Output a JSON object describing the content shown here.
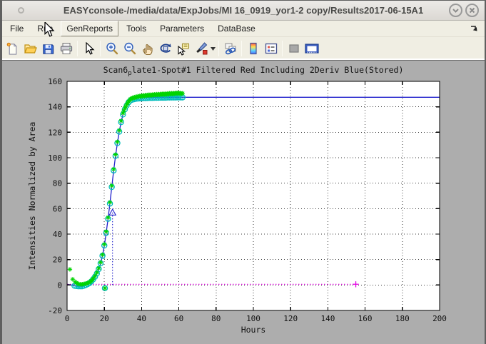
{
  "window": {
    "title": "EASYconsole-/media/data/ExpJobs/MI 16_0919_yor1-2 copy/Results2017-06-15A1",
    "controls": {
      "minimize_icon": "chevron-down",
      "close_icon": "cross"
    }
  },
  "menu": {
    "items": [
      {
        "label": "File"
      },
      {
        "label": "Run"
      },
      {
        "label": "GenReports",
        "state": "hovered"
      },
      {
        "label": "Tools"
      },
      {
        "label": "Parameters"
      },
      {
        "label": "DataBase"
      }
    ],
    "overflow_icon": "jump-arrow-southeast"
  },
  "toolbar": {
    "icons": [
      "new-document",
      "open-folder",
      "save",
      "print",
      "edit-plot-pointer",
      "zoom-in",
      "zoom-out",
      "pan-hand",
      "rotate-3d",
      "data-cursor",
      "brush-data",
      "brush-dropdown",
      "link-plots",
      "insert-colorbar",
      "insert-legend",
      "hide-plot-tools",
      "show-plot-tools-dock"
    ]
  },
  "chart_data": {
    "type": "line",
    "title": {
      "pre": "Scan6",
      "sub": "p",
      "post": "late1-Spot#1 Filtered Red Including 2Deriv Blue(Stored)"
    },
    "xlabel": "Hours",
    "ylabel": "Intensities Normalized by Area",
    "xlim": [
      0,
      200
    ],
    "ylim": [
      -20,
      160
    ],
    "xticks": [
      0,
      20,
      40,
      60,
      80,
      100,
      120,
      140,
      160,
      180,
      200
    ],
    "yticks": [
      -20,
      0,
      20,
      40,
      60,
      80,
      100,
      120,
      140,
      160
    ],
    "grid": true,
    "plot_bg": "#ffffff",
    "figure_bg": "#adadad",
    "series": [
      {
        "name": "fit-curve",
        "kind": "line",
        "color": "#2121cc",
        "width": 1.3,
        "points": [
          [
            0,
            0.5
          ],
          [
            2,
            0
          ],
          [
            4,
            -0.6
          ],
          [
            5,
            -0.8
          ],
          [
            6,
            -1
          ],
          [
            7,
            -1
          ],
          [
            8,
            -1
          ],
          [
            9,
            -0.6
          ],
          [
            10,
            0
          ],
          [
            11,
            0.7
          ],
          [
            12,
            1.5
          ],
          [
            13,
            2.8
          ],
          [
            14,
            4.5
          ],
          [
            15,
            6.5
          ],
          [
            16,
            9
          ],
          [
            17,
            12.5
          ],
          [
            18,
            17
          ],
          [
            19,
            23
          ],
          [
            20,
            31
          ],
          [
            21,
            41
          ],
          [
            22,
            52
          ],
          [
            23,
            64
          ],
          [
            24,
            77
          ],
          [
            25,
            90
          ],
          [
            26,
            101.5
          ],
          [
            27,
            111.5
          ],
          [
            28,
            120.5
          ],
          [
            29,
            128
          ],
          [
            30,
            134
          ],
          [
            31,
            138
          ],
          [
            32,
            141
          ],
          [
            33,
            143.5
          ],
          [
            34,
            145
          ],
          [
            35,
            145.8
          ],
          [
            36,
            146.3
          ],
          [
            37,
            146.7
          ],
          [
            38,
            147
          ],
          [
            39,
            147.2
          ],
          [
            40,
            147.3
          ],
          [
            42,
            147.4
          ],
          [
            45,
            147.5
          ],
          [
            50,
            147.5
          ],
          [
            60,
            147.5
          ],
          [
            100,
            147.5
          ],
          [
            200,
            147.5
          ]
        ]
      },
      {
        "name": "deriv-baseline",
        "kind": "dotted-line",
        "color": "#e100e1",
        "width": 1.2,
        "points": [
          [
            0,
            0.6
          ],
          [
            155,
            0.6
          ]
        ]
      },
      {
        "name": "inflection-line",
        "kind": "dotted-vline",
        "color": "#2121cc",
        "width": 1.1,
        "x": 24.4,
        "y0": 0,
        "y1": 57
      },
      {
        "name": "inflection-marker",
        "kind": "scatter",
        "marker": "triangle-open",
        "color": "#2121cc",
        "size": 4.5,
        "points": [
          [
            24.4,
            57
          ]
        ]
      },
      {
        "name": "stored-circles",
        "kind": "scatter",
        "marker": "circle-open",
        "color": "#00bcbc",
        "size": 3.6,
        "points": [
          [
            4,
            -0.6
          ],
          [
            5,
            -0.8
          ],
          [
            6,
            -1
          ],
          [
            7,
            -1
          ],
          [
            8,
            -1
          ],
          [
            9,
            -0.6
          ],
          [
            10,
            0
          ],
          [
            11,
            0.7
          ],
          [
            12,
            1.5
          ],
          [
            13,
            2.8
          ],
          [
            14,
            4.5
          ],
          [
            15,
            6.5
          ],
          [
            16,
            9
          ],
          [
            17,
            12.5
          ],
          [
            18,
            17
          ],
          [
            19,
            23
          ],
          [
            20,
            31
          ],
          [
            20.3,
            -2.5
          ],
          [
            21,
            41
          ],
          [
            22,
            52
          ],
          [
            23,
            64
          ],
          [
            24,
            77
          ],
          [
            25,
            90
          ],
          [
            26,
            101.5
          ],
          [
            27,
            111.5
          ],
          [
            28,
            120.5
          ],
          [
            29,
            128
          ],
          [
            30,
            134
          ],
          [
            31,
            138
          ],
          [
            32,
            141
          ],
          [
            33,
            143.5
          ],
          [
            34,
            145
          ],
          [
            35,
            145.6
          ],
          [
            36,
            146
          ],
          [
            37,
            146.3
          ],
          [
            38,
            146.5
          ],
          [
            39,
            146.6
          ],
          [
            40,
            146.7
          ],
          [
            41,
            146.8
          ],
          [
            42,
            146.8
          ],
          [
            43,
            146.9
          ],
          [
            44,
            147
          ],
          [
            45,
            147
          ],
          [
            46,
            147
          ],
          [
            47,
            147.1
          ],
          [
            48,
            147.1
          ],
          [
            49,
            147.1
          ],
          [
            50,
            147.2
          ],
          [
            51,
            147.2
          ],
          [
            52,
            147.2
          ],
          [
            53,
            147.2
          ],
          [
            54,
            147.3
          ],
          [
            55,
            147.3
          ],
          [
            56,
            147.3
          ],
          [
            57,
            147.3
          ],
          [
            58,
            147.3
          ],
          [
            59,
            147.4
          ],
          [
            60,
            147.4
          ],
          [
            61,
            147.4
          ],
          [
            62,
            147.4
          ]
        ]
      },
      {
        "name": "filtered-asterisks",
        "kind": "scatter",
        "marker": "asterisk",
        "color": "#00d400",
        "size": 3.2,
        "points": [
          [
            1.5,
            12.3
          ],
          [
            3,
            4.5
          ],
          [
            4.3,
            2.5
          ],
          [
            5,
            1.8
          ],
          [
            5.6,
            1.2
          ],
          [
            6.2,
            0.8
          ],
          [
            7,
            0.6
          ],
          [
            7.6,
            0.5
          ],
          [
            8.2,
            0.6
          ],
          [
            9,
            0.8
          ],
          [
            9.6,
            1
          ],
          [
            10.2,
            1.2
          ],
          [
            11,
            1.6
          ],
          [
            11.6,
            1.9
          ],
          [
            12.2,
            2.3
          ],
          [
            13,
            3.3
          ],
          [
            13.6,
            4.1
          ],
          [
            14,
            5.2
          ],
          [
            15,
            7.2
          ],
          [
            16,
            9.8
          ],
          [
            17,
            13.2
          ],
          [
            18,
            17.8
          ],
          [
            19,
            23.8
          ],
          [
            20,
            32
          ],
          [
            20.3,
            -2.5
          ],
          [
            21,
            42
          ],
          [
            22,
            53
          ],
          [
            23,
            65
          ],
          [
            24,
            78
          ],
          [
            25,
            91
          ],
          [
            26,
            102.5
          ],
          [
            27,
            112.5
          ],
          [
            28,
            121.5
          ],
          [
            29,
            129
          ],
          [
            30,
            135
          ],
          [
            30.5,
            136.8
          ],
          [
            31,
            139
          ],
          [
            31.5,
            140.2
          ],
          [
            32,
            142
          ],
          [
            32.5,
            143
          ],
          [
            33,
            144.3
          ],
          [
            33.5,
            145
          ],
          [
            34,
            146
          ],
          [
            34.5,
            146.4
          ],
          [
            35,
            147
          ],
          [
            35.5,
            146.8
          ],
          [
            36,
            147.5
          ],
          [
            36.5,
            147.2
          ],
          [
            37,
            148
          ],
          [
            37.5,
            147.6
          ],
          [
            38,
            148.3
          ],
          [
            38.5,
            147.9
          ],
          [
            39,
            148.5
          ],
          [
            39.5,
            148.1
          ],
          [
            40,
            148.8
          ],
          [
            40.5,
            148.3
          ],
          [
            41,
            149
          ],
          [
            41.5,
            148.4
          ],
          [
            42,
            149.2
          ],
          [
            42.5,
            148.6
          ],
          [
            43,
            149.3
          ],
          [
            43.5,
            148.8
          ],
          [
            44,
            149.5
          ],
          [
            44.5,
            148.9
          ],
          [
            45,
            149.6
          ],
          [
            45.5,
            149
          ],
          [
            46,
            149.7
          ],
          [
            46.5,
            149.1
          ],
          [
            47,
            149.8
          ],
          [
            47.5,
            149.2
          ],
          [
            48,
            149.9
          ],
          [
            48.5,
            149.3
          ],
          [
            49,
            150
          ],
          [
            49.5,
            149.4
          ],
          [
            50,
            150.1
          ],
          [
            50.5,
            149.5
          ],
          [
            51,
            150.2
          ],
          [
            51.5,
            149.6
          ],
          [
            52,
            150.3
          ],
          [
            52.5,
            149.7
          ],
          [
            53,
            150.4
          ],
          [
            53.5,
            149.8
          ],
          [
            54,
            150.5
          ],
          [
            54.5,
            149.9
          ],
          [
            55,
            150.6
          ],
          [
            55.5,
            150
          ],
          [
            56,
            150.7
          ],
          [
            56.5,
            150.1
          ],
          [
            57,
            150.8
          ],
          [
            57.5,
            150.2
          ],
          [
            58,
            150.9
          ],
          [
            58.5,
            150.3
          ],
          [
            59,
            151
          ],
          [
            59.5,
            150.4
          ],
          [
            60,
            151
          ],
          [
            60.5,
            150.5
          ],
          [
            61,
            150.8
          ],
          [
            61.5,
            150.3
          ],
          [
            62,
            150.6
          ]
        ]
      },
      {
        "name": "baseline-end-marker",
        "kind": "scatter",
        "marker": "plus",
        "color": "#e100e1",
        "size": 4.2,
        "points": [
          [
            155,
            0.6
          ]
        ]
      }
    ]
  }
}
